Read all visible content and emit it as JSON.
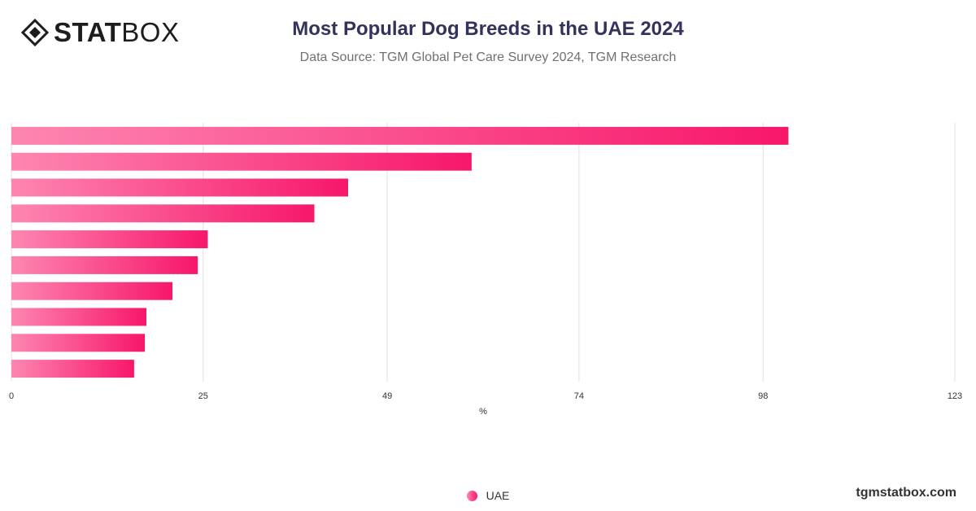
{
  "logo": {
    "bold": "STAT",
    "light": "BOX"
  },
  "header": {
    "title": "Most Popular Dog Breeds in the UAE 2024",
    "subtitle": "Data Source: TGM Global Pet Care Survey 2024, TGM Research"
  },
  "footer": {
    "site": "tgmstatbox.com"
  },
  "colors": {
    "bar_start": "#fd86b1",
    "bar_end": "#f7176a",
    "grid": "#e0e0e0",
    "tick_text": "#333333"
  },
  "chart_data": {
    "type": "bar",
    "orientation": "horizontal",
    "title": "Most Popular Dog Breeds in the UAE 2024",
    "subtitle": "Data Source: TGM Global Pet Care Survey 2024, TGM Research",
    "xlabel": "%",
    "ylabel": "",
    "xlim": [
      0,
      123
    ],
    "x_ticks": [
      0,
      25,
      49,
      74,
      98,
      123
    ],
    "grid": true,
    "legend_position": "bottom-center",
    "series": [
      {
        "name": "UAE",
        "values": [
          101.3,
          60.0,
          43.9,
          39.5,
          25.6,
          24.3,
          21.0,
          17.6,
          17.4,
          16.0
        ]
      }
    ]
  }
}
